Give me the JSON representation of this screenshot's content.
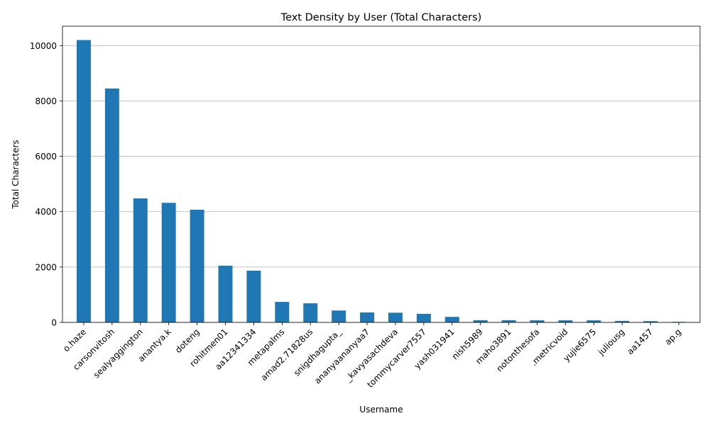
{
  "chart_data": {
    "type": "bar",
    "title": "Text Density by User (Total Characters)",
    "xlabel": "Username",
    "ylabel": "Total Characters",
    "ylim": [
      0,
      10700
    ],
    "yticks": [
      0,
      2000,
      4000,
      6000,
      8000,
      10000
    ],
    "ytick_labels": [
      "0",
      "2000",
      "4000",
      "6000",
      "8000",
      "10000"
    ],
    "grid": "y",
    "bar_color": "#1f77b4",
    "categories": [
      "o.haze",
      "carsonvitosh",
      "sealyaggington",
      "anantya.k",
      "doteng",
      "rohitmen01",
      "aa12341334",
      "metapalms",
      "amad2.71828us",
      "snigdhagupta_",
      "ananyaananyaa7",
      "_kavyasachdeva",
      "tommycarver7557",
      "yash031941",
      "nish5989",
      "maho3891",
      "notonthesofa",
      ".metricvoid",
      "yujie6575",
      "juliousg",
      "aa1457",
      "ap.g"
    ],
    "values": [
      10200,
      8450,
      4480,
      4320,
      4070,
      2050,
      1870,
      740,
      690,
      430,
      360,
      350,
      310,
      200,
      80,
      80,
      75,
      75,
      75,
      55,
      45,
      20
    ]
  }
}
